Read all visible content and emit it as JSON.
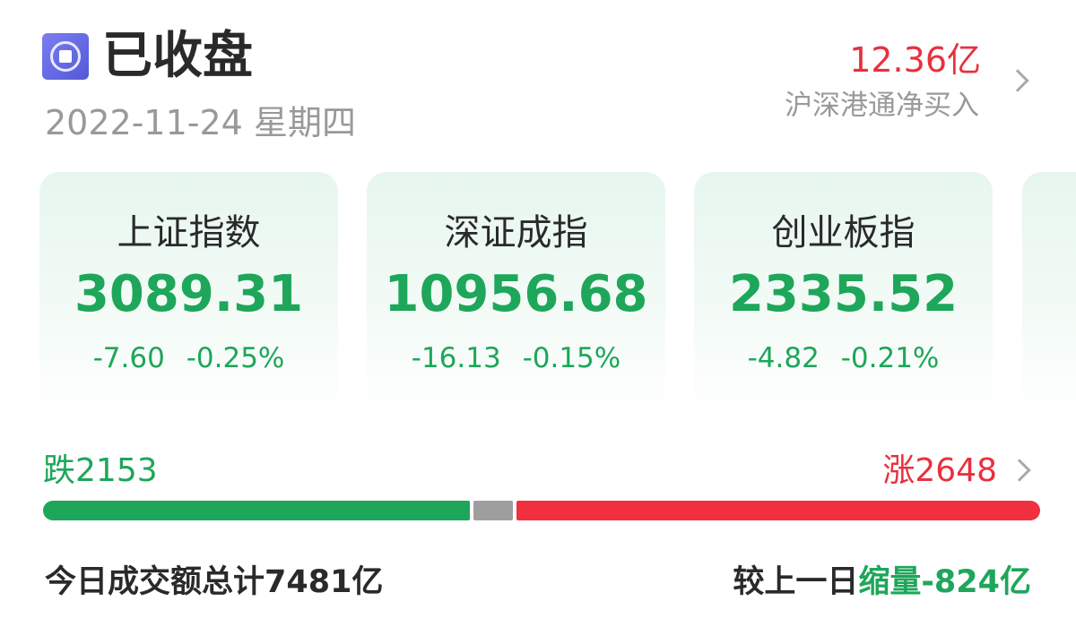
{
  "header": {
    "status_icon": "stop-circle-icon",
    "status": "已收盘",
    "date": "2022-11-24",
    "weekday": "星期四",
    "flow_value": "12.36亿",
    "flow_label": "沪深港通净买入"
  },
  "indices": [
    {
      "name": "上证指数",
      "price": "3089.31",
      "change": "-7.60",
      "pct": "-0.25%"
    },
    {
      "name": "深证成指",
      "price": "10956.68",
      "change": "-16.13",
      "pct": "-0.15%"
    },
    {
      "name": "创业板指",
      "price": "2335.52",
      "change": "-4.82",
      "pct": "-0.21%"
    }
  ],
  "breadth": {
    "fall_label": "跌",
    "fall": "2153",
    "rise_label": "涨",
    "rise": "2648",
    "flat_fraction_approx": 0.04
  },
  "volume": {
    "label": "今日成交额总计",
    "value": "7481亿",
    "cmp_label": "较上一日",
    "cmp_word": "缩量",
    "cmp_value": "-824亿"
  },
  "colors": {
    "up": "#e8303e",
    "down": "#1ea65a",
    "flat": "#9e9e9e"
  }
}
